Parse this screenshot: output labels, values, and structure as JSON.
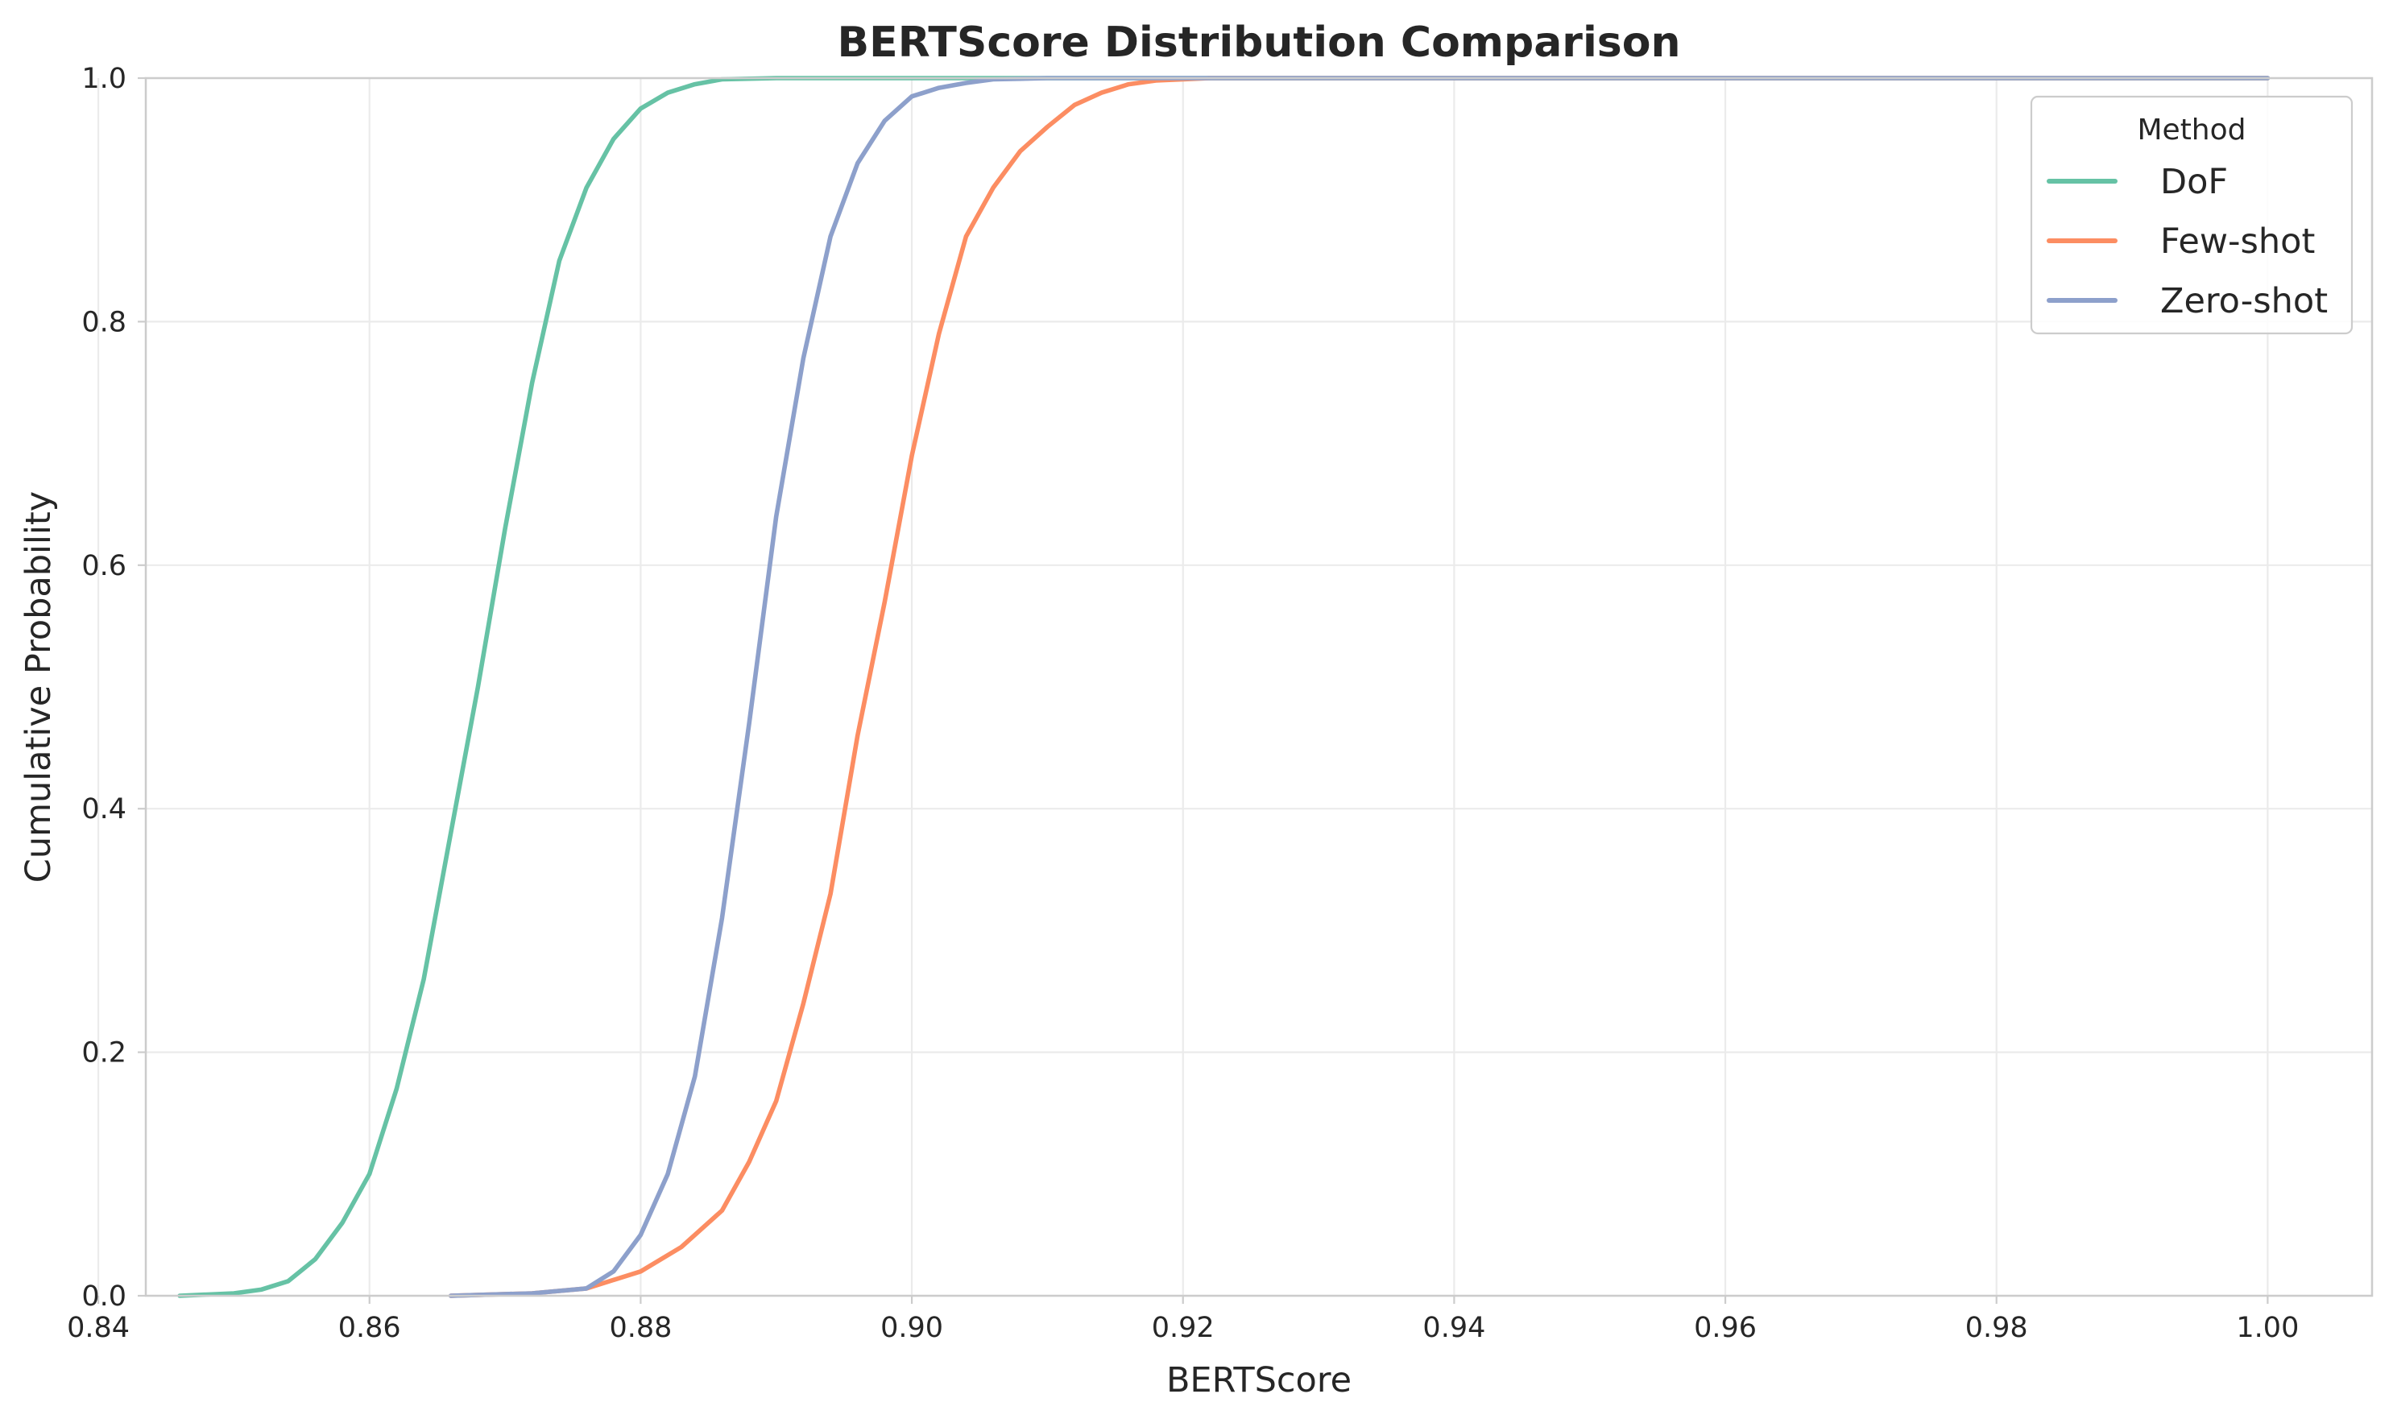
{
  "chart_data": {
    "type": "line",
    "title": "BERTScore Distribution Comparison",
    "xlabel": "BERTScore",
    "ylabel": "Cumulative Probability",
    "xlim": [
      0.8435,
      1.0077
    ],
    "ylim": [
      0,
      1
    ],
    "x_ticks": [
      "0.84",
      "0.86",
      "0.88",
      "0.90",
      "0.92",
      "0.94",
      "0.96",
      "0.98",
      "1.00"
    ],
    "y_ticks": [
      "0.0",
      "0.2",
      "0.4",
      "0.6",
      "0.8",
      "1.0"
    ],
    "x_tick_values": [
      0.84,
      0.86,
      0.88,
      0.9,
      0.92,
      0.94,
      0.96,
      0.98,
      1.0
    ],
    "y_tick_values": [
      0.0,
      0.2,
      0.4,
      0.6,
      0.8,
      1.0
    ],
    "grid": true,
    "legend": {
      "title": "Method",
      "position": "top-right"
    },
    "series": [
      {
        "name": "DoF",
        "color": "#66c2a5",
        "points": [
          [
            0.846,
            0.0
          ],
          [
            0.85,
            0.002
          ],
          [
            0.852,
            0.005
          ],
          [
            0.854,
            0.012
          ],
          [
            0.856,
            0.03
          ],
          [
            0.858,
            0.06
          ],
          [
            0.86,
            0.1
          ],
          [
            0.862,
            0.17
          ],
          [
            0.864,
            0.26
          ],
          [
            0.866,
            0.38
          ],
          [
            0.868,
            0.5
          ],
          [
            0.87,
            0.63
          ],
          [
            0.872,
            0.75
          ],
          [
            0.874,
            0.85
          ],
          [
            0.876,
            0.91
          ],
          [
            0.878,
            0.95
          ],
          [
            0.88,
            0.975
          ],
          [
            0.882,
            0.988
          ],
          [
            0.884,
            0.995
          ],
          [
            0.886,
            0.999
          ],
          [
            0.89,
            1.0
          ],
          [
            1.0,
            1.0
          ]
        ]
      },
      {
        "name": "Few-shot",
        "color": "#fc8d62",
        "points": [
          [
            0.866,
            0.0
          ],
          [
            0.872,
            0.002
          ],
          [
            0.876,
            0.006
          ],
          [
            0.88,
            0.02
          ],
          [
            0.883,
            0.04
          ],
          [
            0.886,
            0.07
          ],
          [
            0.888,
            0.11
          ],
          [
            0.89,
            0.16
          ],
          [
            0.892,
            0.24
          ],
          [
            0.894,
            0.33
          ],
          [
            0.896,
            0.46
          ],
          [
            0.898,
            0.57
          ],
          [
            0.9,
            0.69
          ],
          [
            0.902,
            0.79
          ],
          [
            0.904,
            0.87
          ],
          [
            0.906,
            0.91
          ],
          [
            0.908,
            0.94
          ],
          [
            0.91,
            0.96
          ],
          [
            0.912,
            0.978
          ],
          [
            0.914,
            0.988
          ],
          [
            0.916,
            0.995
          ],
          [
            0.918,
            0.998
          ],
          [
            0.922,
            1.0
          ],
          [
            1.0,
            1.0
          ]
        ]
      },
      {
        "name": "Zero-shot",
        "color": "#8da0cb",
        "points": [
          [
            0.866,
            0.0
          ],
          [
            0.872,
            0.002
          ],
          [
            0.876,
            0.006
          ],
          [
            0.878,
            0.02
          ],
          [
            0.88,
            0.05
          ],
          [
            0.882,
            0.1
          ],
          [
            0.884,
            0.18
          ],
          [
            0.886,
            0.31
          ],
          [
            0.888,
            0.47
          ],
          [
            0.89,
            0.64
          ],
          [
            0.892,
            0.77
          ],
          [
            0.894,
            0.87
          ],
          [
            0.896,
            0.93
          ],
          [
            0.898,
            0.965
          ],
          [
            0.9,
            0.985
          ],
          [
            0.902,
            0.992
          ],
          [
            0.904,
            0.996
          ],
          [
            0.906,
            0.999
          ],
          [
            0.91,
            1.0
          ],
          [
            1.0,
            1.0
          ]
        ]
      }
    ]
  }
}
